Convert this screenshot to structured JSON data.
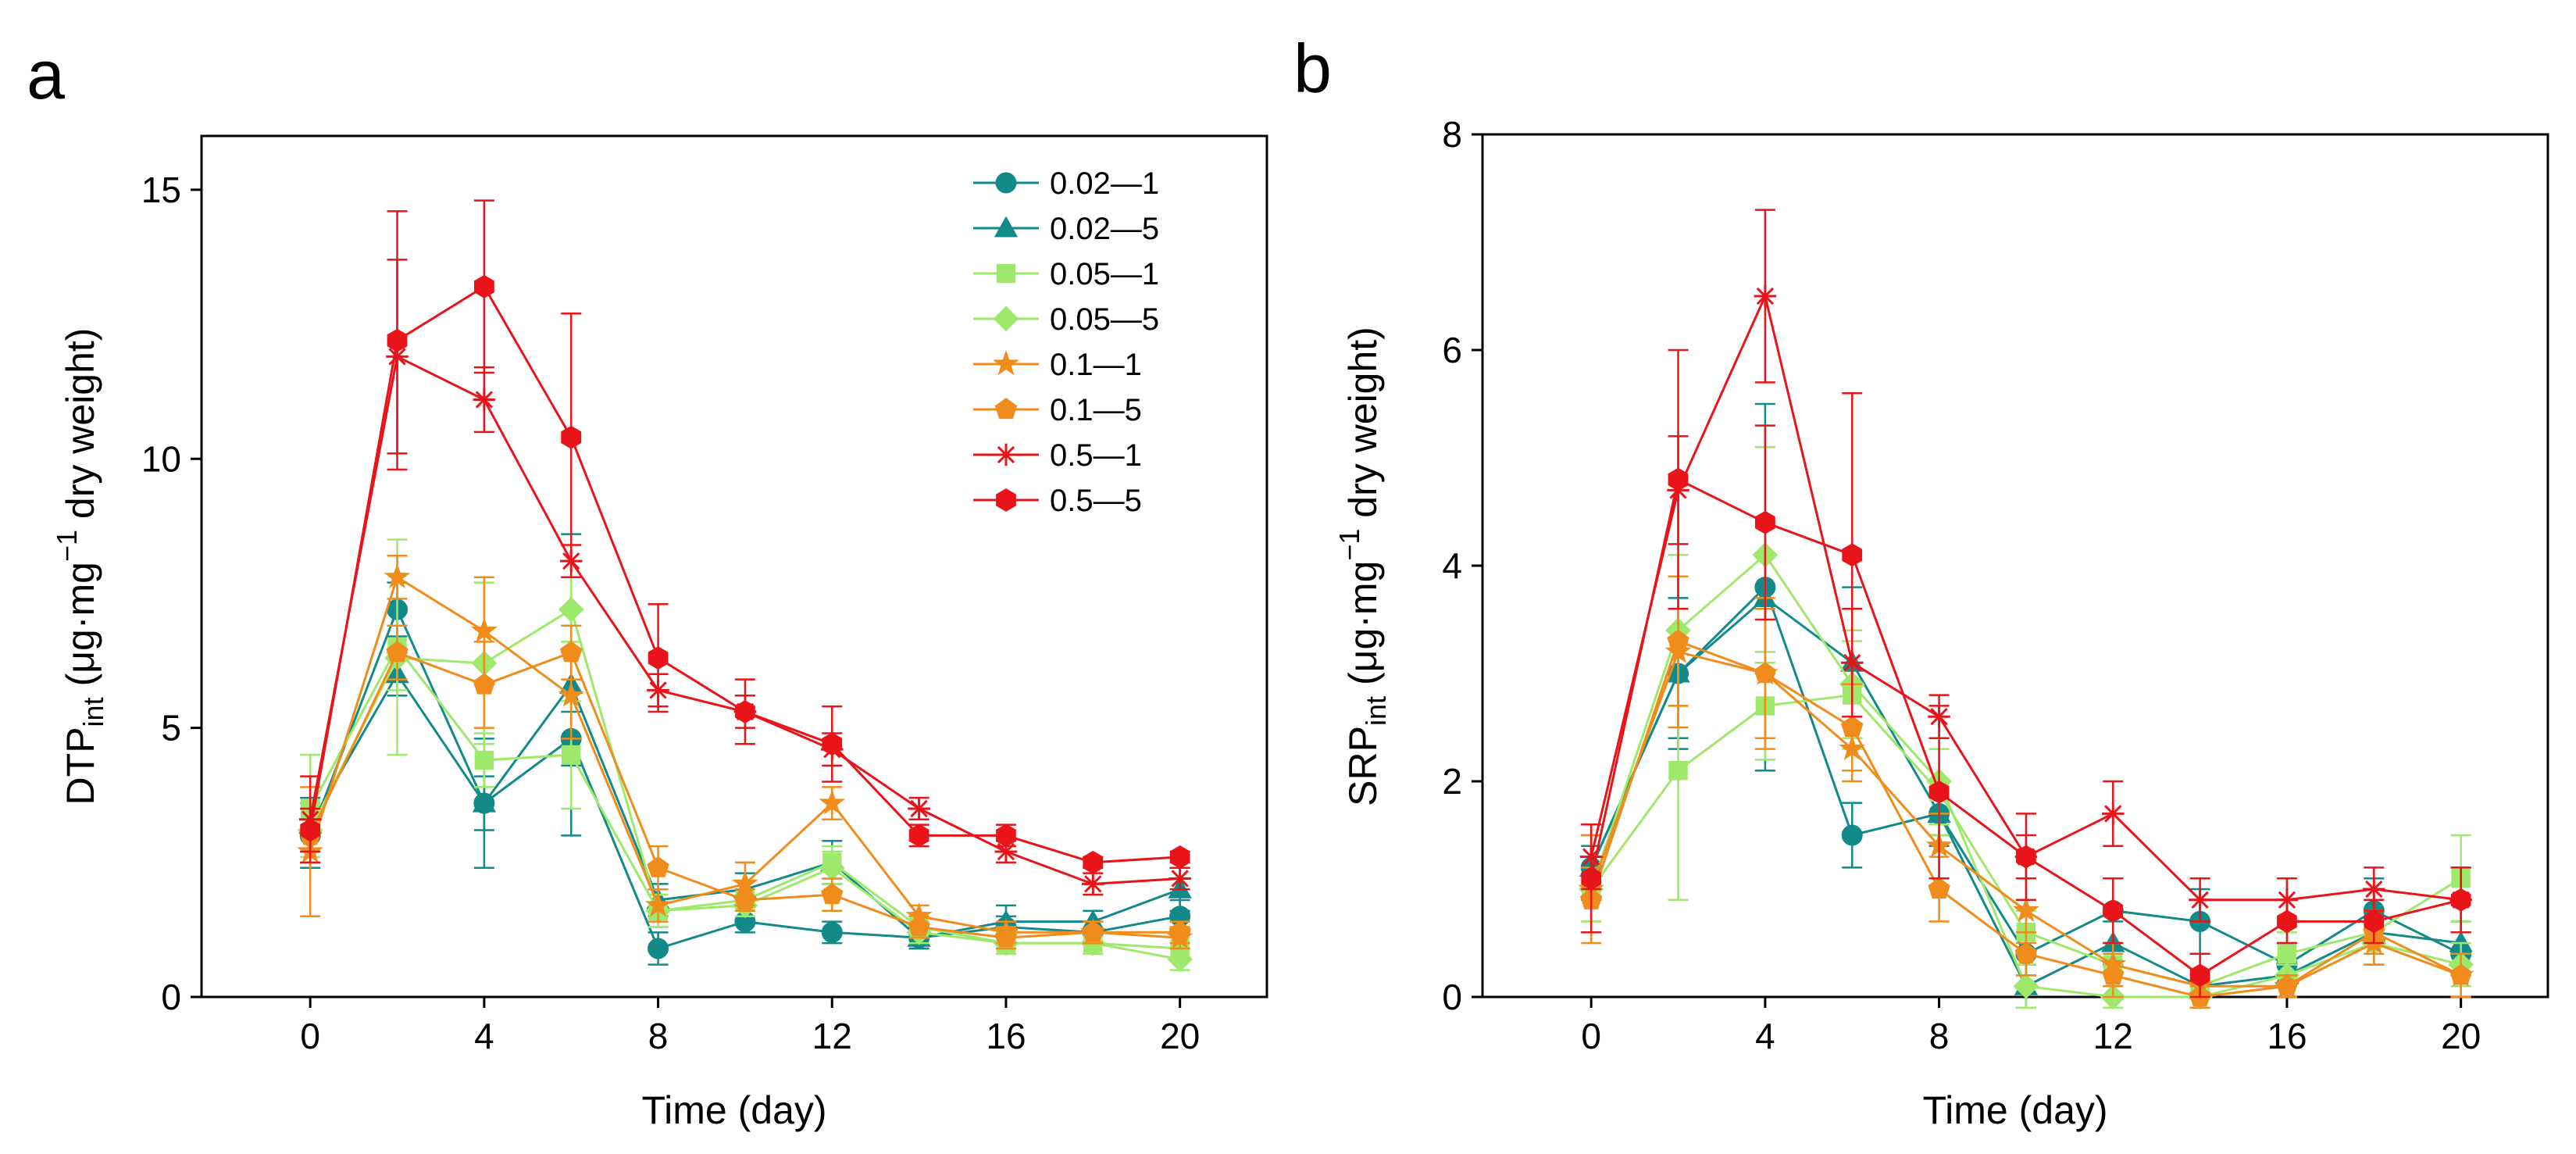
{
  "panels": [
    {
      "label": "a",
      "ylabel_main": "DTP",
      "ylabel_sub": "int",
      "ylabel_units_pre": "(μg·mg",
      "ylabel_units_sup": "−1",
      "ylabel_units_post": " dry weight)",
      "xlabel": "Time (day)"
    },
    {
      "label": "b",
      "ylabel_main": "SRP",
      "ylabel_sub": "int",
      "ylabel_units_pre": "(μg·mg",
      "ylabel_units_sup": "−1",
      "ylabel_units_post": " dry weight)",
      "xlabel": "Time (day)"
    }
  ],
  "legend": [
    {
      "name": "0.02—1",
      "color": "#138a8a",
      "marker": "circle"
    },
    {
      "name": "0.02—5",
      "color": "#138a8a",
      "marker": "triangle"
    },
    {
      "name": "0.05—1",
      "color": "#9ee86b",
      "marker": "square"
    },
    {
      "name": "0.05—5",
      "color": "#9ee86b",
      "marker": "diamond"
    },
    {
      "name": "0.1—1",
      "color": "#f08c1b",
      "marker": "star"
    },
    {
      "name": "0.1—5",
      "color": "#f08c1b",
      "marker": "pentagon"
    },
    {
      "name": "0.5—1",
      "color": "#e8141a",
      "marker": "asterisk"
    },
    {
      "name": "0.5—5",
      "color": "#e8141a",
      "marker": "hexagon"
    }
  ],
  "chart_data": [
    {
      "type": "line",
      "title": "",
      "xlabel": "Time (day)",
      "ylabel": "DTPint (μg·mg−1 dry weight)",
      "xlim": [
        -2.5,
        22
      ],
      "ylim": [
        0,
        16
      ],
      "xticks": [
        0,
        4,
        8,
        12,
        16,
        20
      ],
      "yticks": [
        0,
        5,
        10,
        15
      ],
      "x": [
        0,
        2,
        4,
        6,
        8,
        10,
        12,
        14,
        16,
        18,
        20
      ],
      "series": [
        {
          "name": "0.02—1",
          "values": [
            3.0,
            7.2,
            3.6,
            4.8,
            0.9,
            1.4,
            1.2,
            1.1,
            1.3,
            1.2,
            1.5
          ],
          "errors": [
            0.6,
            0.5,
            0.5,
            0.5,
            0.3,
            0.2,
            0.2,
            0.2,
            0.2,
            0.2,
            0.3
          ]
        },
        {
          "name": "0.02—5",
          "values": [
            3.2,
            6.0,
            3.6,
            5.8,
            1.8,
            2.0,
            2.5,
            1.1,
            1.4,
            1.4,
            2.0
          ],
          "errors": [
            0.5,
            0.4,
            1.2,
            2.8,
            0.3,
            0.3,
            0.4,
            0.2,
            0.3,
            0.2,
            0.4
          ]
        },
        {
          "name": "0.05—1",
          "values": [
            3.5,
            6.5,
            4.4,
            4.5,
            1.6,
            1.8,
            2.5,
            1.3,
            1.0,
            1.0,
            0.9
          ],
          "errors": [
            1.0,
            2.0,
            0.5,
            1.0,
            0.3,
            0.2,
            0.3,
            0.2,
            0.2,
            0.2,
            0.2
          ]
        },
        {
          "name": "0.05—5",
          "values": [
            3.1,
            6.3,
            6.2,
            7.2,
            1.6,
            1.7,
            2.4,
            1.2,
            1.0,
            1.0,
            0.7
          ],
          "errors": [
            0.5,
            0.6,
            1.5,
            0.6,
            0.3,
            0.2,
            0.3,
            0.2,
            0.2,
            0.2,
            0.2
          ]
        },
        {
          "name": "0.1—1",
          "values": [
            2.7,
            7.8,
            6.8,
            5.6,
            1.7,
            2.1,
            3.6,
            1.5,
            1.2,
            1.2,
            1.1
          ],
          "errors": [
            1.2,
            0.4,
            1.0,
            0.8,
            0.3,
            0.4,
            0.3,
            0.2,
            0.2,
            0.2,
            0.2
          ]
        },
        {
          "name": "0.1—5",
          "values": [
            3.0,
            6.4,
            5.8,
            6.4,
            2.4,
            1.8,
            1.9,
            1.3,
            1.1,
            1.2,
            1.2
          ],
          "errors": [
            0.5,
            0.5,
            0.8,
            0.5,
            0.4,
            0.2,
            0.3,
            0.2,
            0.2,
            0.2,
            0.2
          ]
        },
        {
          "name": "0.5—1",
          "values": [
            3.3,
            11.9,
            11.1,
            8.1,
            5.7,
            5.3,
            4.6,
            3.5,
            2.7,
            2.1,
            2.2
          ],
          "errors": [
            0.8,
            1.8,
            0.6,
            0.3,
            0.3,
            0.3,
            0.3,
            0.2,
            0.2,
            0.2,
            0.2
          ]
        },
        {
          "name": "0.5—5",
          "values": [
            3.1,
            12.2,
            13.2,
            10.4,
            6.3,
            5.3,
            4.7,
            3.0,
            3.0,
            2.5,
            2.6
          ],
          "errors": [
            0.4,
            2.4,
            1.6,
            2.3,
            1.0,
            0.6,
            0.7,
            0.2,
            0.2,
            0.1,
            0.1
          ]
        }
      ]
    },
    {
      "type": "line",
      "title": "",
      "xlabel": "Time (day)",
      "ylabel": "SRPint (μg·mg−1 dry weight)",
      "xlim": [
        -2.5,
        22
      ],
      "ylim": [
        0,
        8
      ],
      "xticks": [
        0,
        4,
        8,
        12,
        16,
        20
      ],
      "yticks": [
        0,
        2,
        4,
        6,
        8
      ],
      "x": [
        0,
        2,
        4,
        6,
        8,
        10,
        12,
        14,
        16,
        18,
        20
      ],
      "series": [
        {
          "name": "0.02—1",
          "values": [
            1.2,
            3.0,
            3.8,
            1.5,
            1.7,
            0.4,
            0.8,
            0.7,
            0.3,
            0.8,
            0.4
          ],
          "errors": [
            0.2,
            0.6,
            1.7,
            0.3,
            0.2,
            0.2,
            0.3,
            0.3,
            0.2,
            0.3,
            0.2
          ]
        },
        {
          "name": "0.02—5",
          "values": [
            1.2,
            3.0,
            3.7,
            3.1,
            1.7,
            0.1,
            0.5,
            0.1,
            0.2,
            0.6,
            0.5
          ],
          "errors": [
            0.3,
            0.7,
            0.7,
            0.7,
            0.3,
            0.2,
            0.2,
            0.1,
            0.1,
            0.3,
            0.2
          ]
        },
        {
          "name": "0.05—1",
          "values": [
            1.0,
            2.1,
            2.7,
            2.8,
            1.9,
            0.6,
            0.3,
            0.1,
            0.4,
            0.6,
            1.1
          ],
          "errors": [
            0.3,
            1.2,
            0.5,
            0.5,
            0.4,
            0.2,
            0.2,
            0.1,
            0.2,
            0.2,
            0.4
          ]
        },
        {
          "name": "0.05—5",
          "values": [
            1.0,
            3.4,
            4.1,
            2.9,
            2.0,
            0.1,
            0.0,
            0.0,
            0.2,
            0.5,
            0.3
          ],
          "errors": [
            0.3,
            0.7,
            1.0,
            0.5,
            0.4,
            0.2,
            0.1,
            0.1,
            0.1,
            0.2,
            0.2
          ]
        },
        {
          "name": "0.1—1",
          "values": [
            1.0,
            3.2,
            3.0,
            2.3,
            1.4,
            0.8,
            0.3,
            0.1,
            0.1,
            0.5,
            0.2
          ],
          "errors": [
            0.5,
            0.7,
            0.7,
            0.3,
            0.3,
            0.3,
            0.2,
            0.1,
            0.1,
            0.2,
            0.2
          ]
        },
        {
          "name": "0.1—5",
          "values": [
            0.9,
            3.3,
            3.0,
            2.5,
            1.0,
            0.4,
            0.2,
            0.0,
            0.1,
            0.6,
            0.2
          ],
          "errors": [
            0.3,
            0.6,
            0.6,
            0.4,
            0.3,
            0.2,
            0.2,
            0.1,
            0.1,
            0.2,
            0.2
          ]
        },
        {
          "name": "0.5—1",
          "values": [
            1.3,
            4.7,
            6.5,
            3.1,
            2.6,
            1.3,
            1.7,
            0.9,
            0.9,
            1.0,
            0.9
          ],
          "errors": [
            0.3,
            0.5,
            0.8,
            0.5,
            0.2,
            0.2,
            0.3,
            0.2,
            0.2,
            0.2,
            0.3
          ]
        },
        {
          "name": "0.5—5",
          "values": [
            1.1,
            4.8,
            4.4,
            4.1,
            1.9,
            1.3,
            0.8,
            0.2,
            0.7,
            0.7,
            0.9
          ],
          "errors": [
            0.5,
            1.2,
            0.9,
            1.5,
            0.8,
            0.4,
            0.3,
            0.2,
            0.2,
            0.2,
            0.3
          ]
        }
      ]
    }
  ]
}
